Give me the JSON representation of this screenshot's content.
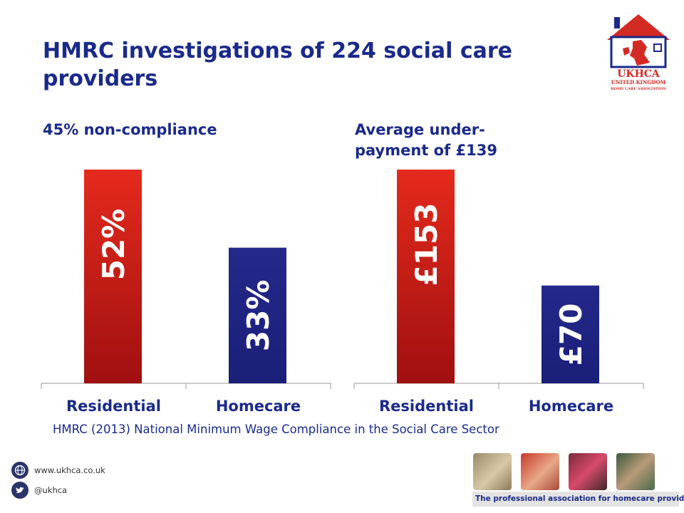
{
  "title": "HMRC investigations of 224 social care providers",
  "source": "HMRC (2013) National Minimum Wage Compliance in the Social Care Sector",
  "logo": {
    "line1": "UKHCA",
    "line2": "UNITED KINGDOM",
    "line3": "HOME CARE ASSOCIATION"
  },
  "footer": {
    "website": "www.ukhca.co.uk",
    "twitter": "@ukhca",
    "tagline": "The professional association for homecare providers"
  },
  "colors": {
    "title": "#1a2a8a",
    "residential": "#e52a1c",
    "homecare": "#1a1f78",
    "axis": "#999999"
  },
  "icons": [
    "globe-icon",
    "twitter-bird-icon"
  ],
  "chart_data": [
    {
      "type": "bar",
      "title": "45% non-compliance",
      "categories": [
        "Residential",
        "Homecare"
      ],
      "values": [
        52,
        33
      ],
      "data_labels": [
        "52%",
        "33%"
      ],
      "ylim": [
        0,
        52
      ],
      "grid": false,
      "legend": "none"
    },
    {
      "type": "bar",
      "title": "Average under-payment of £139",
      "categories": [
        "Residential",
        "Homecare"
      ],
      "values": [
        153,
        70
      ],
      "data_labels": [
        "£153",
        "£70"
      ],
      "ylim": [
        0,
        153
      ],
      "grid": false,
      "legend": "none"
    }
  ]
}
